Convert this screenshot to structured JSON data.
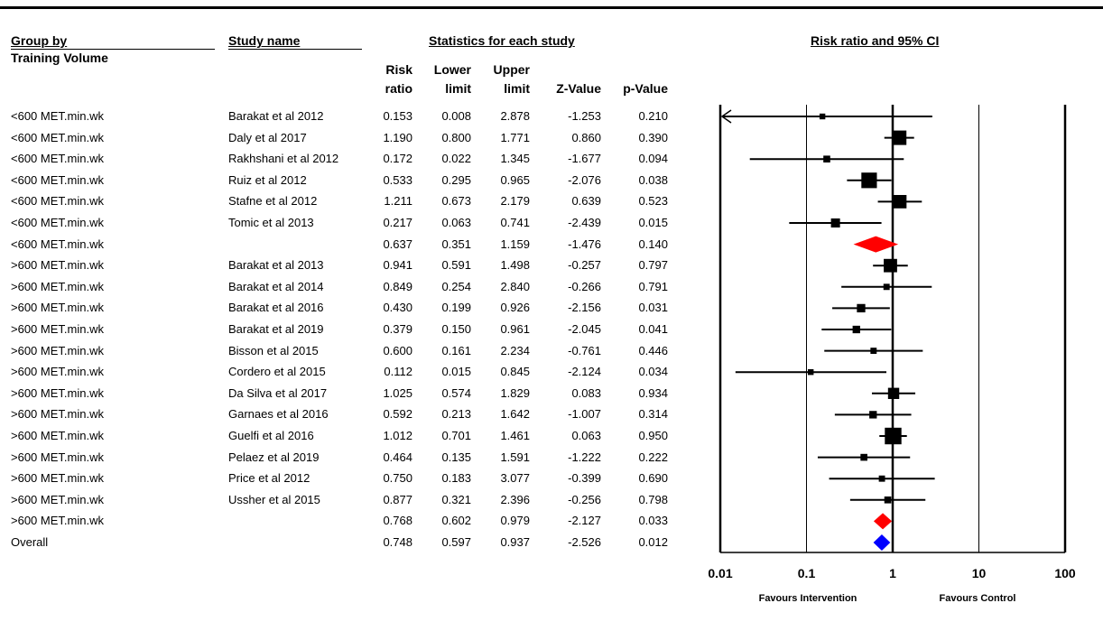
{
  "headers": {
    "group_by": "Group by",
    "group_sub": "Training Volume",
    "study_name": "Study name",
    "statistics": "Statistics for each study",
    "plot_title": "Risk ratio and 95% CI",
    "columns": {
      "rr": [
        "Risk",
        "ratio"
      ],
      "lower": [
        "Lower",
        "limit"
      ],
      "upper": [
        "Upper",
        "limit"
      ],
      "z": "Z-Value",
      "p": "p-Value"
    }
  },
  "rows": [
    {
      "group": "<600 MET.min.wk",
      "study": "Barakat et al 2012",
      "rr": "0.153",
      "lower": "0.008",
      "upper": "2.878",
      "z": "-1.253",
      "p": "0.210"
    },
    {
      "group": "<600 MET.min.wk",
      "study": "Daly et al 2017",
      "rr": "1.190",
      "lower": "0.800",
      "upper": "1.771",
      "z": "0.860",
      "p": "0.390"
    },
    {
      "group": "<600 MET.min.wk",
      "study": "Rakhshani et al 2012",
      "rr": "0.172",
      "lower": "0.022",
      "upper": "1.345",
      "z": "-1.677",
      "p": "0.094"
    },
    {
      "group": "<600 MET.min.wk",
      "study": "Ruiz et al 2012",
      "rr": "0.533",
      "lower": "0.295",
      "upper": "0.965",
      "z": "-2.076",
      "p": "0.038"
    },
    {
      "group": "<600 MET.min.wk",
      "study": "Stafne et al 2012",
      "rr": "1.211",
      "lower": "0.673",
      "upper": "2.179",
      "z": "0.639",
      "p": "0.523"
    },
    {
      "group": "<600 MET.min.wk",
      "study": "Tomic et al 2013",
      "rr": "0.217",
      "lower": "0.063",
      "upper": "0.741",
      "z": "-2.439",
      "p": "0.015"
    },
    {
      "group": "<600 MET.min.wk",
      "study": "",
      "rr": "0.637",
      "lower": "0.351",
      "upper": "1.159",
      "z": "-1.476",
      "p": "0.140"
    },
    {
      "group": ">600 MET.min.wk",
      "study": "Barakat et al 2013",
      "rr": "0.941",
      "lower": "0.591",
      "upper": "1.498",
      "z": "-0.257",
      "p": "0.797"
    },
    {
      "group": ">600 MET.min.wk",
      "study": "Barakat et al 2014",
      "rr": "0.849",
      "lower": "0.254",
      "upper": "2.840",
      "z": "-0.266",
      "p": "0.791"
    },
    {
      "group": ">600 MET.min.wk",
      "study": "Barakat et al 2016",
      "rr": "0.430",
      "lower": "0.199",
      "upper": "0.926",
      "z": "-2.156",
      "p": "0.031"
    },
    {
      "group": ">600 MET.min.wk",
      "study": "Barakat et al 2019",
      "rr": "0.379",
      "lower": "0.150",
      "upper": "0.961",
      "z": "-2.045",
      "p": "0.041"
    },
    {
      "group": ">600 MET.min.wk",
      "study": "Bisson et al 2015",
      "rr": "0.600",
      "lower": "0.161",
      "upper": "2.234",
      "z": "-0.761",
      "p": "0.446"
    },
    {
      "group": ">600 MET.min.wk",
      "study": "Cordero et al 2015",
      "rr": "0.112",
      "lower": "0.015",
      "upper": "0.845",
      "z": "-2.124",
      "p": "0.034"
    },
    {
      "group": ">600 MET.min.wk",
      "study": "Da Silva et al 2017",
      "rr": "1.025",
      "lower": "0.574",
      "upper": "1.829",
      "z": "0.083",
      "p": "0.934"
    },
    {
      "group": ">600 MET.min.wk",
      "study": "Garnaes et al 2016",
      "rr": "0.592",
      "lower": "0.213",
      "upper": "1.642",
      "z": "-1.007",
      "p": "0.314"
    },
    {
      "group": ">600 MET.min.wk",
      "study": "Guelfi et al 2016",
      "rr": "1.012",
      "lower": "0.701",
      "upper": "1.461",
      "z": "0.063",
      "p": "0.950"
    },
    {
      "group": ">600 MET.min.wk",
      "study": "Pelaez et al 2019",
      "rr": "0.464",
      "lower": "0.135",
      "upper": "1.591",
      "z": "-1.222",
      "p": "0.222"
    },
    {
      "group": ">600 MET.min.wk",
      "study": "Price et al 2012",
      "rr": "0.750",
      "lower": "0.183",
      "upper": "3.077",
      "z": "-0.399",
      "p": "0.690"
    },
    {
      "group": ">600 MET.min.wk",
      "study": "Ussher et al 2015",
      "rr": "0.877",
      "lower": "0.321",
      "upper": "2.396",
      "z": "-0.256",
      "p": "0.798"
    },
    {
      "group": ">600 MET.min.wk",
      "study": "",
      "rr": "0.768",
      "lower": "0.602",
      "upper": "0.979",
      "z": "-2.127",
      "p": "0.033"
    },
    {
      "group": "Overall",
      "study": "",
      "rr": "0.748",
      "lower": "0.597",
      "upper": "0.937",
      "z": "-2.526",
      "p": "0.012"
    }
  ],
  "chart_data": {
    "type": "forest",
    "x_scale": "log",
    "xlim": [
      0.01,
      100
    ],
    "x_ticks": [
      "0.01",
      "0.1",
      "1",
      "10",
      "100"
    ],
    "favours_left": "Favours Intervention",
    "favours_right": "Favours Control",
    "study_marker_color": "#000000",
    "subgroup_diamond_color": "#ff0000",
    "overall_diamond_color": "#0000ff",
    "points": [
      {
        "label": "Barakat et al 2012",
        "kind": "study",
        "rr": 0.153,
        "lower": 0.008,
        "upper": 2.878,
        "weight": 1
      },
      {
        "label": "Daly et al 2017",
        "kind": "study",
        "rr": 1.19,
        "lower": 0.8,
        "upper": 1.771,
        "weight": 5
      },
      {
        "label": "Rakhshani et al 2012",
        "kind": "study",
        "rr": 0.172,
        "lower": 0.022,
        "upper": 1.345,
        "weight": 1.5
      },
      {
        "label": "Ruiz et al 2012",
        "kind": "study",
        "rr": 0.533,
        "lower": 0.295,
        "upper": 0.965,
        "weight": 5.5
      },
      {
        "label": "Stafne et al 2012",
        "kind": "study",
        "rr": 1.211,
        "lower": 0.673,
        "upper": 2.179,
        "weight": 4.5
      },
      {
        "label": "Tomic et al 2013",
        "kind": "study",
        "rr": 0.217,
        "lower": 0.063,
        "upper": 0.741,
        "weight": 2.5
      },
      {
        "label": "<600 MET.min.wk",
        "kind": "subgroup",
        "rr": 0.637,
        "lower": 0.351,
        "upper": 1.159
      },
      {
        "label": "Barakat et al 2013",
        "kind": "study",
        "rr": 0.941,
        "lower": 0.591,
        "upper": 1.498,
        "weight": 4.5
      },
      {
        "label": "Barakat et al 2014",
        "kind": "study",
        "rr": 0.849,
        "lower": 0.254,
        "upper": 2.84,
        "weight": 1.2
      },
      {
        "label": "Barakat et al 2016",
        "kind": "study",
        "rr": 0.43,
        "lower": 0.199,
        "upper": 0.926,
        "weight": 2.2
      },
      {
        "label": "Barakat et al 2019",
        "kind": "study",
        "rr": 0.379,
        "lower": 0.15,
        "upper": 0.961,
        "weight": 1.8
      },
      {
        "label": "Bisson et al 2015",
        "kind": "study",
        "rr": 0.6,
        "lower": 0.161,
        "upper": 2.234,
        "weight": 1.2
      },
      {
        "label": "Cordero et al 2015",
        "kind": "study",
        "rr": 0.112,
        "lower": 0.015,
        "upper": 0.845,
        "weight": 1
      },
      {
        "label": "Da Silva et al 2017",
        "kind": "study",
        "rr": 1.025,
        "lower": 0.574,
        "upper": 1.829,
        "weight": 3.5
      },
      {
        "label": "Garnaes et al 2016",
        "kind": "study",
        "rr": 0.592,
        "lower": 0.213,
        "upper": 1.642,
        "weight": 1.8
      },
      {
        "label": "Guelfi et al 2016",
        "kind": "study",
        "rr": 1.012,
        "lower": 0.701,
        "upper": 1.461,
        "weight": 6
      },
      {
        "label": "Pelaez et al 2019",
        "kind": "study",
        "rr": 0.464,
        "lower": 0.135,
        "upper": 1.591,
        "weight": 1.5
      },
      {
        "label": "Price et al 2012",
        "kind": "study",
        "rr": 0.75,
        "lower": 0.183,
        "upper": 3.077,
        "weight": 1.2
      },
      {
        "label": "Ussher et al 2015",
        "kind": "study",
        "rr": 0.877,
        "lower": 0.321,
        "upper": 2.396,
        "weight": 1.5
      },
      {
        "label": ">600 MET.min.wk",
        "kind": "subgroup",
        "rr": 0.768,
        "lower": 0.602,
        "upper": 0.979
      },
      {
        "label": "Overall",
        "kind": "overall",
        "rr": 0.748,
        "lower": 0.597,
        "upper": 0.937
      }
    ]
  }
}
